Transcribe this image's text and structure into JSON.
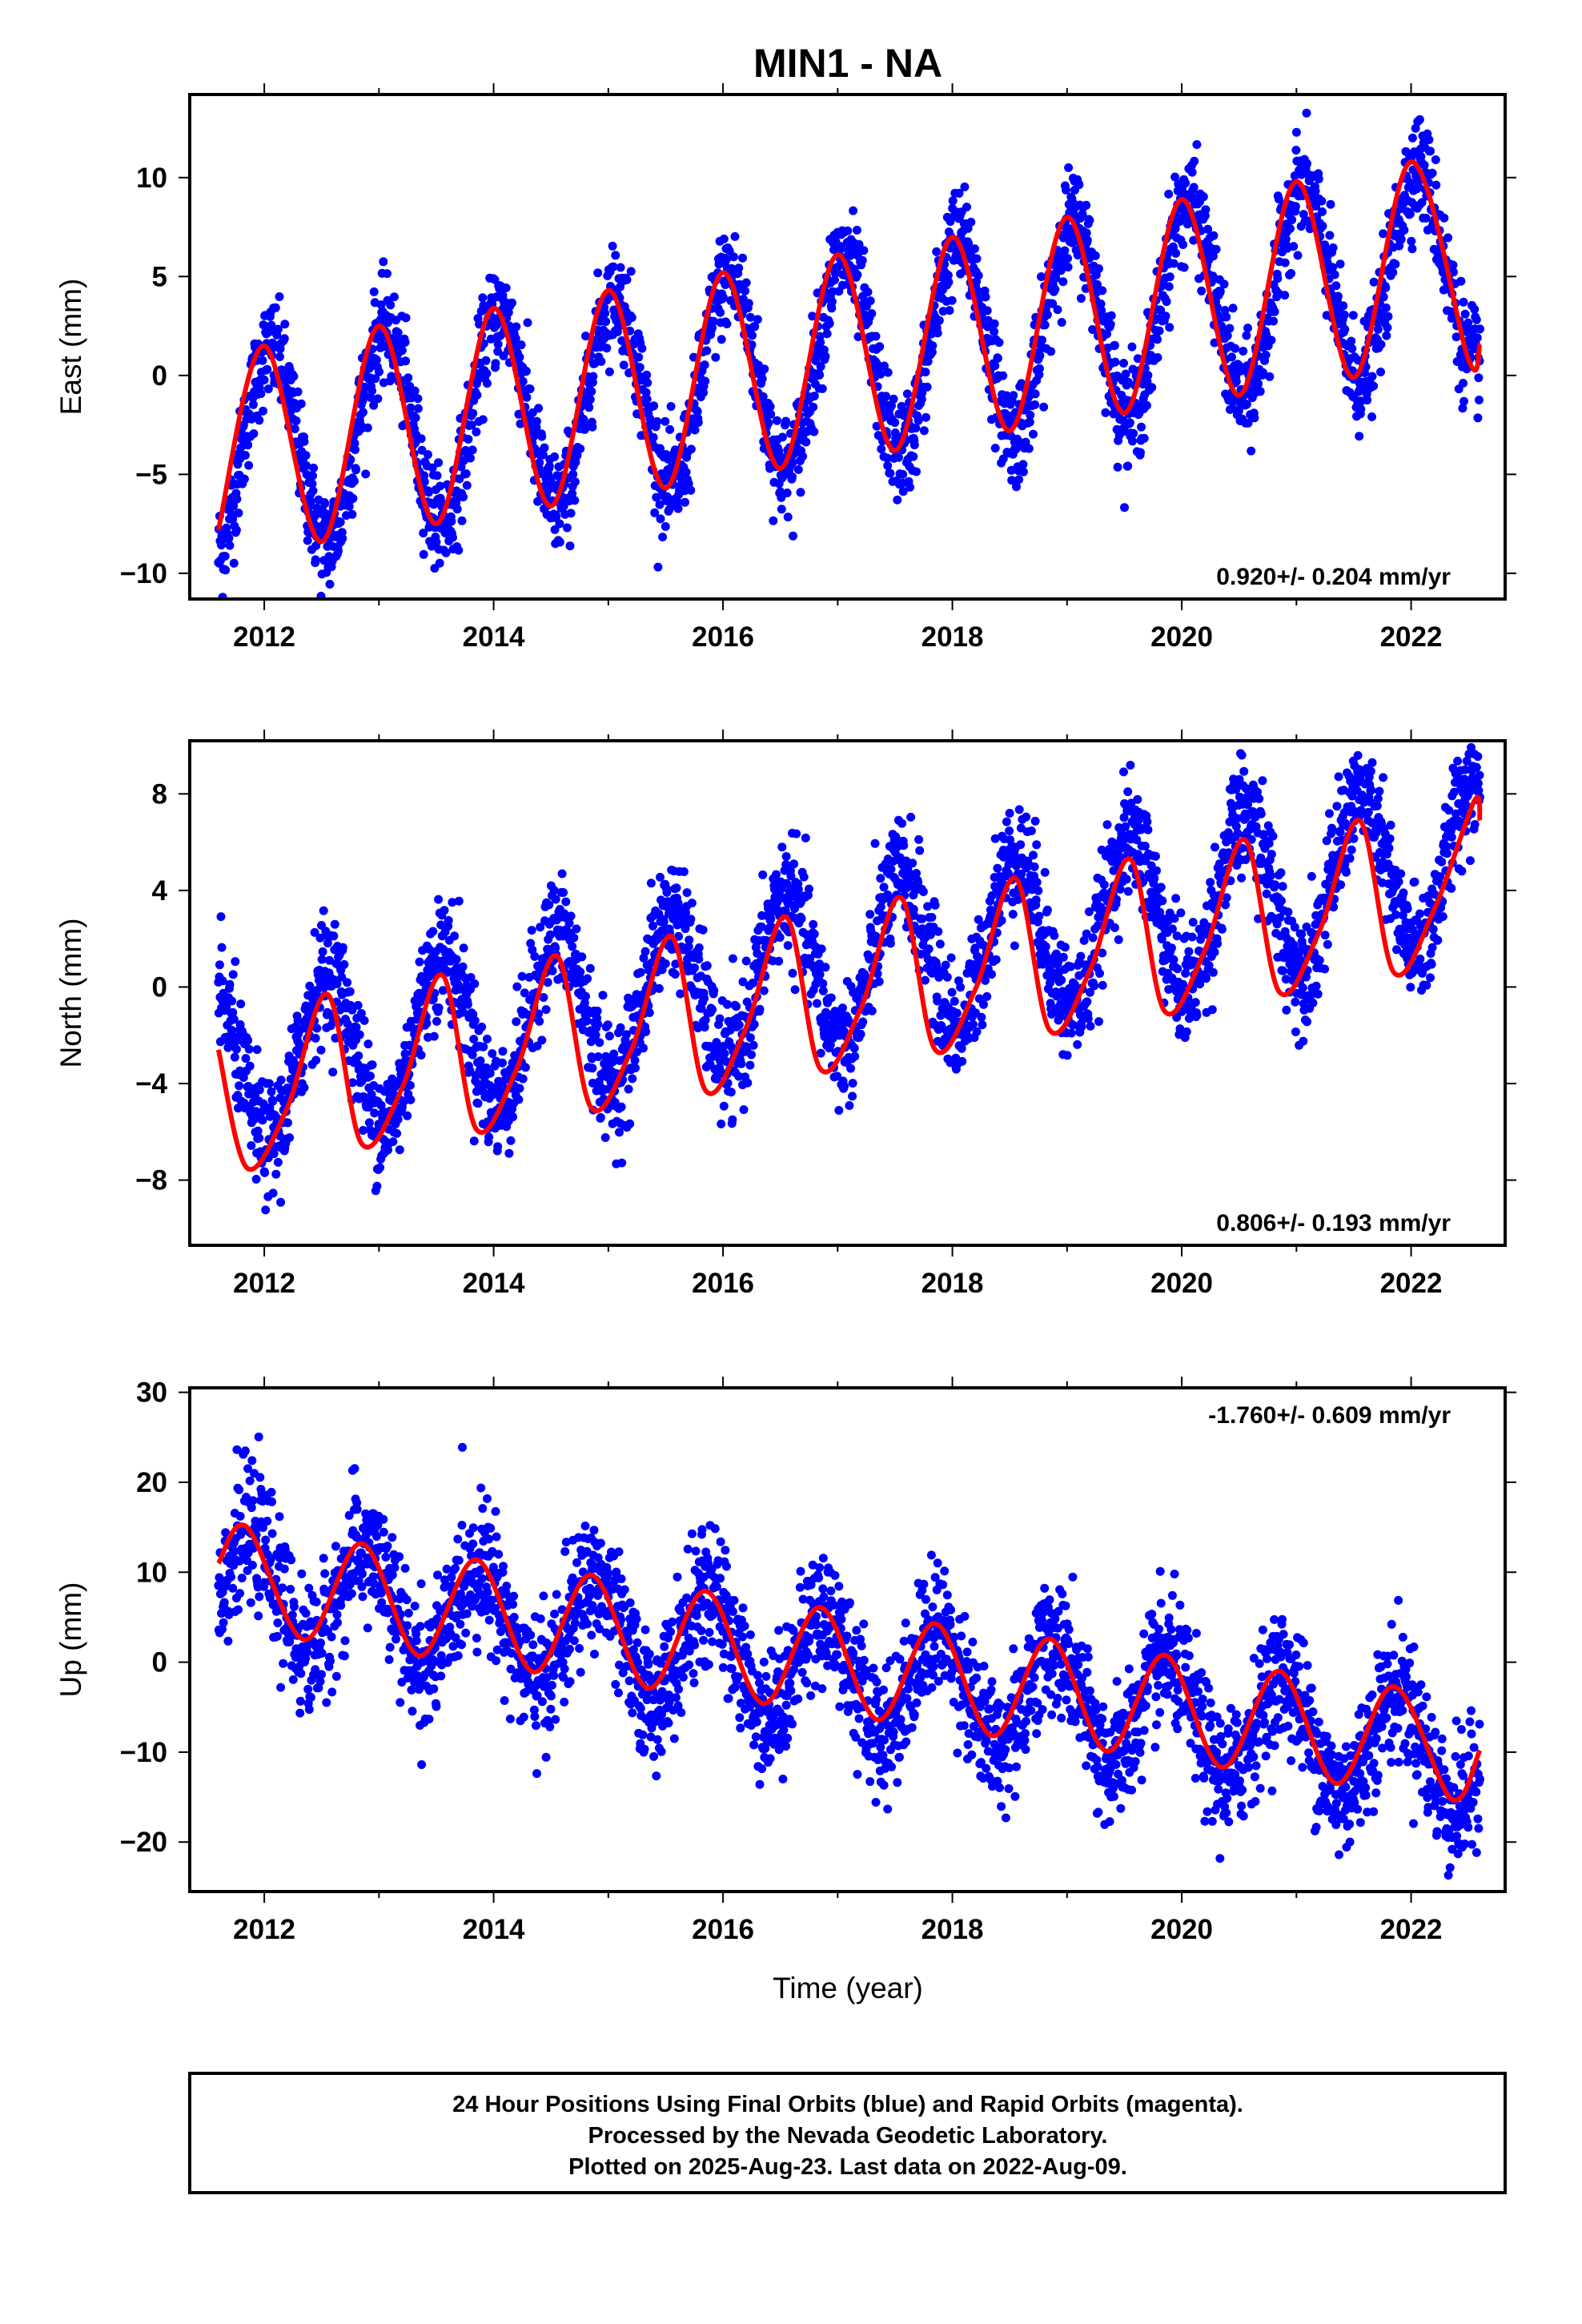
{
  "title": "MIN1 - NA",
  "xlabel": "Time (year)",
  "caption": {
    "line1": "24 Hour Positions Using Final Orbits (blue) and Rapid Orbits (magenta).",
    "line2": "Processed by the Nevada Geodetic Laboratory.",
    "line3": "Plotted on 2025-Aug-23. Last data on 2022-Aug-09."
  },
  "colors": {
    "points": "#0000ff",
    "fit": "#ff0000",
    "frame": "#000000"
  },
  "chart_data": [
    {
      "type": "scatter",
      "ylabel": "East (mm)",
      "rate_label": "0.920+/- 0.204 mm/yr",
      "rate_position": "bottom-right",
      "xlim": [
        2011.35,
        2022.82
      ],
      "ylim": [
        -11.3,
        14.2
      ],
      "x_ticks": [
        2012,
        2014,
        2016,
        2018,
        2020,
        2022
      ],
      "y_ticks": [
        -10,
        -5,
        0,
        5,
        10
      ],
      "y_tick_labels": [
        "−10",
        "−5",
        "0",
        "5",
        "10"
      ],
      "series": [
        {
          "kind": "points",
          "model": {
            "start": 2011.6,
            "end": 2022.6,
            "offset": -4.2,
            "trend": 0.92,
            "amplitude": 5.1,
            "phase_year": 2012.05,
            "noise": 1.3
          }
        },
        {
          "kind": "fit",
          "x": [
            2011.6,
            2012.0,
            2012.5,
            2013.0,
            2013.5,
            2014.0,
            2014.5,
            2015.0,
            2015.5,
            2016.0,
            2016.5,
            2017.0,
            2017.5,
            2018.0,
            2018.5,
            2019.0,
            2019.5,
            2020.0,
            2020.5,
            2021.0,
            2021.5,
            2022.0,
            2022.5,
            2022.6
          ],
          "y": [
            -7.8,
            1.5,
            -8.4,
            2.5,
            -7.5,
            3.4,
            -6.6,
            4.3,
            -5.7,
            5.2,
            -4.7,
            6.1,
            -3.8,
            7.0,
            -2.8,
            8.0,
            -1.9,
            8.9,
            -1.0,
            9.8,
            -0.1,
            10.8,
            0.8,
            1.6
          ]
        }
      ]
    },
    {
      "type": "scatter",
      "ylabel": "North (mm)",
      "rate_label": "0.806+/- 0.193 mm/yr",
      "rate_position": "bottom-right",
      "xlim": [
        2011.35,
        2022.82
      ],
      "ylim": [
        -10.7,
        10.2
      ],
      "x_ticks": [
        2012,
        2014,
        2016,
        2018,
        2020,
        2022
      ],
      "y_ticks": [
        -8,
        -4,
        0,
        4,
        8
      ],
      "y_tick_labels": [
        "−8",
        "−4",
        "0",
        "4",
        "8"
      ],
      "series": [
        {
          "kind": "points",
          "model": {
            "start": 2011.6,
            "end": 2022.6,
            "offset": -3.5,
            "trend": 0.806,
            "amplitude": 3.3,
            "phase_year": 2011.55,
            "noise": 1.2
          }
        },
        {
          "kind": "fit",
          "x": [
            2011.6,
            2011.85,
            2012.2,
            2012.55,
            2012.85,
            2013.2,
            2013.55,
            2013.85,
            2014.2,
            2014.55,
            2014.85,
            2015.2,
            2015.55,
            2015.85,
            2016.2,
            2016.55,
            2016.85,
            2017.2,
            2017.55,
            2017.85,
            2018.2,
            2018.55,
            2018.85,
            2019.2,
            2019.55,
            2019.85,
            2020.2,
            2020.55,
            2020.85,
            2021.2,
            2021.55,
            2021.85,
            2022.2,
            2022.55,
            2022.6
          ],
          "y": [
            -2.6,
            -7.5,
            -5.0,
            -0.3,
            -6.5,
            -4.2,
            0.5,
            -5.9,
            -3.4,
            1.3,
            -5.0,
            -2.6,
            2.1,
            -4.3,
            -1.7,
            2.9,
            -3.4,
            -0.9,
            3.7,
            -2.6,
            -0.1,
            4.5,
            -1.8,
            0.7,
            5.3,
            -1.0,
            1.5,
            6.1,
            -0.2,
            2.3,
            6.9,
            0.6,
            3.2,
            7.7,
            6.9
          ]
        }
      ]
    },
    {
      "type": "scatter",
      "ylabel": "Up (mm)",
      "rate_label": "-1.760+/- 0.609 mm/yr",
      "rate_position": "top-right",
      "xlim": [
        2011.35,
        2022.82
      ],
      "ylim": [
        -25.5,
        30.5
      ],
      "x_ticks": [
        2012,
        2014,
        2016,
        2018,
        2020,
        2022
      ],
      "y_ticks": [
        -20,
        -10,
        0,
        10,
        20,
        30
      ],
      "y_tick_labels": [
        "−20",
        "−10",
        "0",
        "10",
        "20",
        "30"
      ],
      "series": [
        {
          "kind": "points",
          "model": {
            "start": 2011.6,
            "end": 2022.6,
            "offset": 8.7,
            "trend": -1.76,
            "amplitude": 6.1,
            "phase_year": 2011.88,
            "noise": 3.6
          }
        },
        {
          "kind": "fit",
          "x": [
            2011.6,
            2011.85,
            2012.35,
            2012.85,
            2013.35,
            2013.85,
            2014.35,
            2014.85,
            2015.35,
            2015.85,
            2016.35,
            2016.85,
            2017.35,
            2017.85,
            2018.35,
            2018.85,
            2019.35,
            2019.85,
            2020.35,
            2020.85,
            2021.35,
            2021.85,
            2022.35,
            2022.6
          ],
          "y": [
            11.0,
            15.0,
            2.5,
            13.2,
            0.7,
            11.4,
            -1.1,
            9.7,
            -2.9,
            7.9,
            -4.6,
            6.1,
            -6.4,
            4.3,
            -8.2,
            2.6,
            -9.9,
            0.8,
            -11.7,
            -1.0,
            -13.5,
            -2.7,
            -15.2,
            -9.8
          ]
        }
      ]
    }
  ]
}
